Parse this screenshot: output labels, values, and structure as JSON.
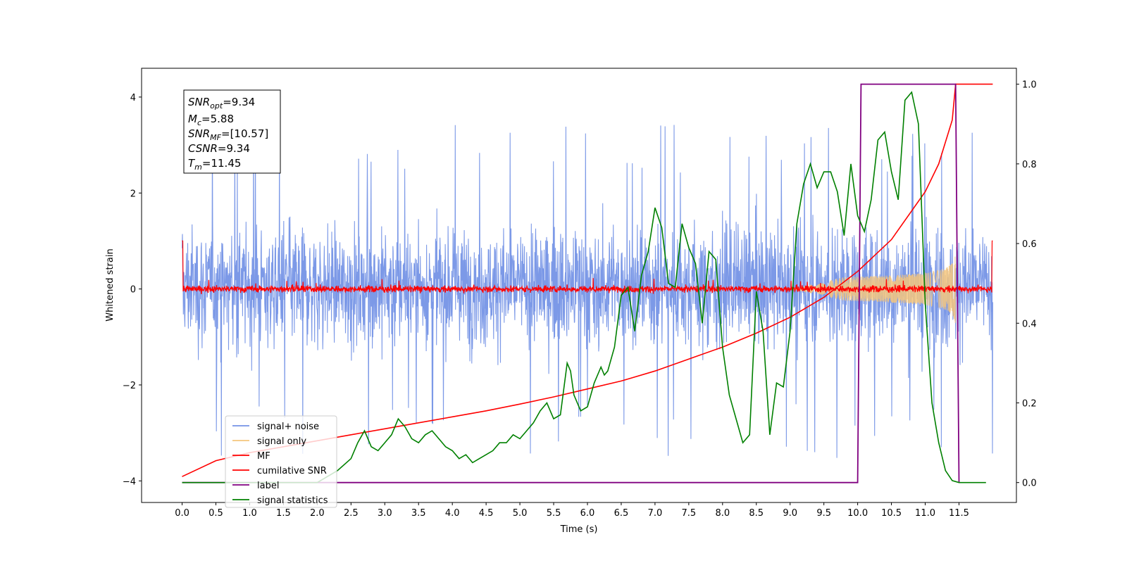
{
  "chart_data": {
    "type": "line",
    "xlabel": "Time (s)",
    "ylabel": "Whitened strain",
    "xlim": [
      -0.6,
      12.35
    ],
    "ylim": [
      -4.45,
      4.6
    ],
    "ylim_right": [
      -0.05,
      1.04
    ],
    "x_ticks": [
      "0.0",
      "0.5",
      "1.0",
      "1.5",
      "2.0",
      "2.5",
      "3.0",
      "3.5",
      "4.0",
      "4.5",
      "5.0",
      "5.5",
      "6.0",
      "6.5",
      "7.0",
      "7.5",
      "8.0",
      "8.5",
      "9.0",
      "9.5",
      "10.0",
      "10.5",
      "11.0",
      "11.5"
    ],
    "y_ticks_left": [
      "−4",
      "−2",
      "0",
      "2",
      "4"
    ],
    "y_ticks_right": [
      "0.0",
      "0.2",
      "0.4",
      "0.6",
      "0.8",
      "1.0"
    ],
    "info_box": {
      "snr_opt": {
        "main": "SNR",
        "sub": "opt",
        "value": "=9.34"
      },
      "mc": {
        "main": "M",
        "sub": "c",
        "value": "=5.88"
      },
      "snr_mf": {
        "main": "SNR",
        "sub": "MF",
        "value": "=[10.57]"
      },
      "csnr": {
        "main": "CSNR",
        "sub": "",
        "value": "=9.34"
      },
      "tm": {
        "main": "T",
        "sub": "m",
        "value": "=11.45"
      }
    },
    "series": [
      {
        "name": "signal+ noise",
        "color": "#7593e6",
        "axis": "left",
        "kind": "noise",
        "x_range": [
          0,
          12
        ],
        "amplitude_range": [
          -3.9,
          4.15
        ]
      },
      {
        "name": "signal only",
        "color": "#f5c67d",
        "axis": "left",
        "kind": "chirp",
        "x_range": [
          9.0,
          11.45
        ],
        "peak_amplitude": 0.75
      },
      {
        "name": "MF",
        "color": "#ff0000",
        "axis": "left",
        "kind": "noise",
        "x_range": [
          0,
          12
        ],
        "amplitude_range": [
          -0.15,
          0.35
        ],
        "edge_value": 1.0
      },
      {
        "name": "cumilative SNR",
        "color": "#ff0000",
        "axis": "right",
        "x": [
          0,
          0.5,
          1,
          1.5,
          2,
          2.5,
          3,
          3.5,
          4,
          4.5,
          5,
          5.5,
          6,
          6.5,
          7,
          7.5,
          8,
          8.5,
          9,
          9.5,
          10,
          10.5,
          11,
          11.2,
          11.4,
          11.45,
          12
        ],
        "y": [
          0.015,
          0.055,
          0.075,
          0.09,
          0.105,
          0.12,
          0.135,
          0.15,
          0.165,
          0.18,
          0.197,
          0.215,
          0.235,
          0.255,
          0.28,
          0.31,
          0.34,
          0.375,
          0.415,
          0.465,
          0.53,
          0.61,
          0.73,
          0.8,
          0.91,
          1.0,
          1.0
        ]
      },
      {
        "name": "label",
        "color": "#800080",
        "axis": "right",
        "x": [
          0,
          10.0,
          10.05,
          11.45,
          11.5
        ],
        "y": [
          0,
          0,
          1,
          1,
          0
        ]
      },
      {
        "name": "signal statistics",
        "color": "#008000",
        "axis": "right",
        "x": [
          0,
          2.0,
          2.3,
          2.5,
          2.6,
          2.7,
          2.8,
          2.9,
          3.0,
          3.1,
          3.2,
          3.3,
          3.4,
          3.5,
          3.6,
          3.7,
          3.8,
          3.9,
          4.0,
          4.1,
          4.2,
          4.3,
          4.4,
          4.5,
          4.6,
          4.7,
          4.8,
          4.9,
          5.0,
          5.1,
          5.2,
          5.3,
          5.4,
          5.5,
          5.6,
          5.7,
          5.75,
          5.8,
          5.9,
          6.0,
          6.1,
          6.2,
          6.25,
          6.3,
          6.4,
          6.5,
          6.6,
          6.7,
          6.8,
          6.9,
          7.0,
          7.1,
          7.2,
          7.3,
          7.4,
          7.5,
          7.6,
          7.7,
          7.8,
          7.9,
          8.0,
          8.1,
          8.2,
          8.3,
          8.4,
          8.5,
          8.6,
          8.7,
          8.8,
          8.9,
          9.0,
          9.1,
          9.2,
          9.3,
          9.4,
          9.5,
          9.6,
          9.7,
          9.8,
          9.9,
          10.0,
          10.1,
          10.2,
          10.3,
          10.4,
          10.5,
          10.6,
          10.7,
          10.8,
          10.9,
          11.0,
          11.1,
          11.2,
          11.3,
          11.4,
          11.5,
          11.6,
          11.7,
          11.8,
          11.9
        ],
        "y": [
          0.0,
          0.0,
          0.03,
          0.06,
          0.1,
          0.13,
          0.09,
          0.08,
          0.1,
          0.12,
          0.16,
          0.14,
          0.11,
          0.1,
          0.12,
          0.13,
          0.11,
          0.09,
          0.08,
          0.06,
          0.07,
          0.05,
          0.06,
          0.07,
          0.08,
          0.1,
          0.1,
          0.12,
          0.11,
          0.13,
          0.15,
          0.18,
          0.2,
          0.16,
          0.17,
          0.3,
          0.28,
          0.22,
          0.18,
          0.19,
          0.25,
          0.29,
          0.27,
          0.28,
          0.34,
          0.47,
          0.49,
          0.38,
          0.52,
          0.58,
          0.69,
          0.64,
          0.5,
          0.49,
          0.65,
          0.59,
          0.55,
          0.4,
          0.58,
          0.56,
          0.34,
          0.22,
          0.16,
          0.1,
          0.12,
          0.48,
          0.38,
          0.12,
          0.25,
          0.24,
          0.38,
          0.65,
          0.75,
          0.8,
          0.74,
          0.78,
          0.78,
          0.73,
          0.62,
          0.8,
          0.67,
          0.63,
          0.71,
          0.86,
          0.88,
          0.78,
          0.71,
          0.96,
          0.98,
          0.9,
          0.45,
          0.2,
          0.1,
          0.03,
          0.005,
          0.0,
          0.0,
          0.0,
          0.0,
          0.0
        ]
      }
    ],
    "legend": {
      "position": "lower-left",
      "entries": [
        "signal+ noise",
        "signal only",
        "MF",
        "cumilative SNR",
        "label",
        "signal statistics"
      ]
    }
  }
}
